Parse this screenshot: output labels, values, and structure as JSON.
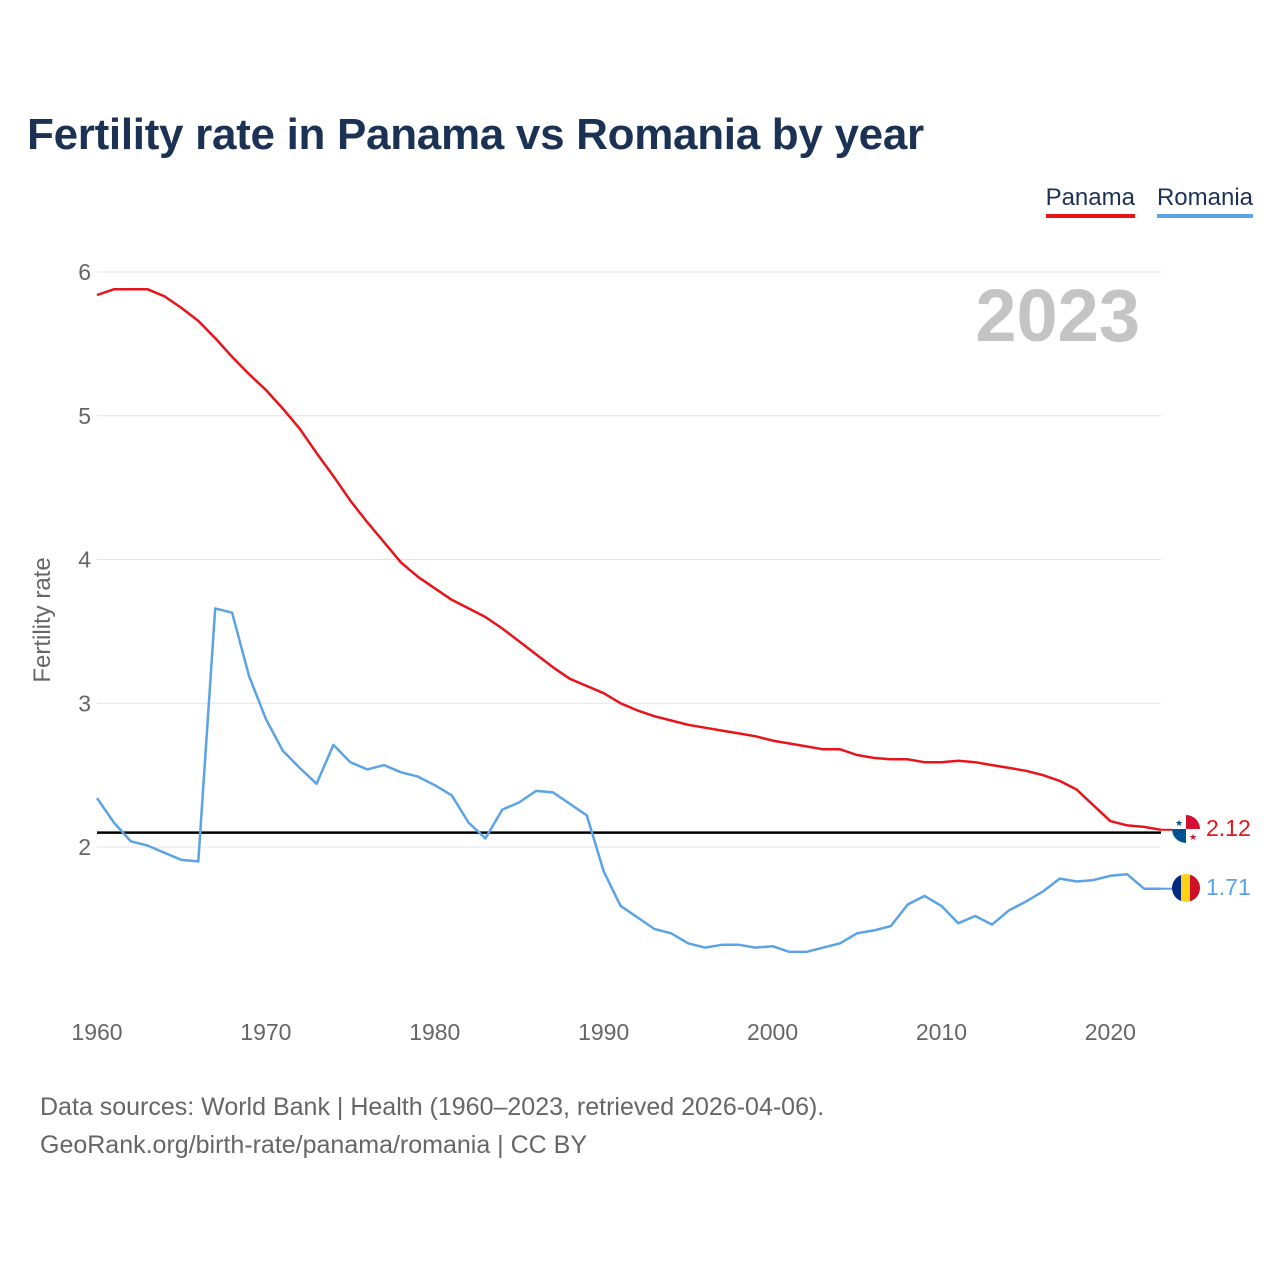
{
  "title": "Fertility rate in Panama vs Romania by year",
  "legend": [
    {
      "label": "Panama",
      "color": "#e8141a"
    },
    {
      "label": "Romania",
      "color": "#5aa3e6"
    }
  ],
  "year_watermark": "2023",
  "end_labels": {
    "panama": {
      "text": "2.12",
      "flag": "panama-flag-icon"
    },
    "romania": {
      "text": "1.71",
      "flag": "romania-flag-icon"
    }
  },
  "sources": {
    "line1": "Data sources: World Bank | Health (1960–2023, retrieved 2026-04-06).",
    "line2": "GeoRank.org/birth-rate/panama/romania | CC BY"
  },
  "chart_data": {
    "type": "line",
    "title": "Fertility rate in Panama vs Romania by year",
    "xlabel": "",
    "ylabel": "Fertility rate",
    "xlim": [
      1960,
      2023
    ],
    "ylim": [
      1.0,
      6.0
    ],
    "x_ticks": [
      1960,
      1970,
      1980,
      1990,
      2000,
      2010,
      2020
    ],
    "y_ticks": [
      2,
      3,
      4,
      5,
      6
    ],
    "grid": true,
    "legend_position": "top-right",
    "reference_line": {
      "y": 2.1,
      "color": "#000000"
    },
    "x": [
      1960,
      1961,
      1962,
      1963,
      1964,
      1965,
      1966,
      1967,
      1968,
      1969,
      1970,
      1971,
      1972,
      1973,
      1974,
      1975,
      1976,
      1977,
      1978,
      1979,
      1980,
      1981,
      1982,
      1983,
      1984,
      1985,
      1986,
      1987,
      1988,
      1989,
      1990,
      1991,
      1992,
      1993,
      1994,
      1995,
      1996,
      1997,
      1998,
      1999,
      2000,
      2001,
      2002,
      2003,
      2004,
      2005,
      2006,
      2007,
      2008,
      2009,
      2010,
      2011,
      2012,
      2013,
      2014,
      2015,
      2016,
      2017,
      2018,
      2019,
      2020,
      2021,
      2022,
      2023
    ],
    "series": [
      {
        "name": "Panama",
        "color": "#e8141a",
        "values": [
          5.84,
          5.88,
          5.88,
          5.88,
          5.83,
          5.75,
          5.66,
          5.54,
          5.41,
          5.29,
          5.18,
          5.05,
          4.91,
          4.74,
          4.58,
          4.41,
          4.26,
          4.12,
          3.98,
          3.88,
          3.8,
          3.72,
          3.66,
          3.6,
          3.52,
          3.43,
          3.34,
          3.25,
          3.17,
          3.12,
          3.07,
          3.0,
          2.95,
          2.91,
          2.88,
          2.85,
          2.83,
          2.81,
          2.79,
          2.77,
          2.74,
          2.72,
          2.7,
          2.68,
          2.68,
          2.64,
          2.62,
          2.61,
          2.61,
          2.59,
          2.59,
          2.6,
          2.59,
          2.57,
          2.55,
          2.53,
          2.5,
          2.46,
          2.4,
          2.29,
          2.18,
          2.15,
          2.14,
          2.12
        ]
      },
      {
        "name": "Romania",
        "color": "#5aa3e6",
        "values": [
          2.34,
          2.17,
          2.04,
          2.01,
          1.96,
          1.91,
          1.9,
          3.66,
          3.63,
          3.19,
          2.89,
          2.67,
          2.55,
          2.44,
          2.71,
          2.59,
          2.54,
          2.57,
          2.52,
          2.49,
          2.43,
          2.36,
          2.17,
          2.06,
          2.26,
          2.31,
          2.39,
          2.38,
          2.3,
          2.22,
          1.83,
          1.59,
          1.51,
          1.43,
          1.4,
          1.33,
          1.3,
          1.32,
          1.32,
          1.3,
          1.31,
          1.27,
          1.27,
          1.3,
          1.33,
          1.4,
          1.42,
          1.45,
          1.6,
          1.66,
          1.59,
          1.47,
          1.52,
          1.46,
          1.56,
          1.62,
          1.69,
          1.78,
          1.76,
          1.77,
          1.8,
          1.81,
          1.71,
          1.71
        ]
      }
    ]
  }
}
